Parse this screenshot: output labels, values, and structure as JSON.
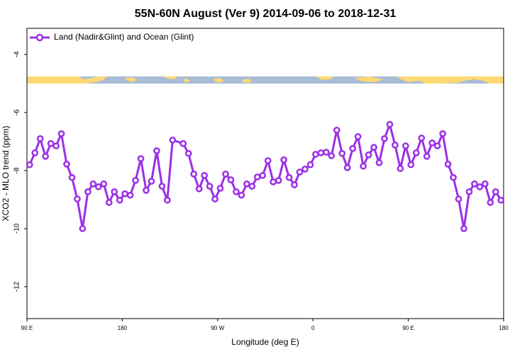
{
  "chart_data": {
    "type": "line",
    "title": "55N-60N August (Ver 9)   2014-09-06 to 2018-12-31",
    "xlabel": "Longitude (deg E)",
    "ylabel": "XCO2 - MLO trend (ppm)",
    "xlim": [
      90,
      540
    ],
    "ylim": [
      -13.1,
      -3.1
    ],
    "xticks": [
      {
        "value": 90,
        "label": "90 E"
      },
      {
        "value": 180,
        "label": "180"
      },
      {
        "value": 270,
        "label": "90 W"
      },
      {
        "value": 360,
        "label": "0"
      },
      {
        "value": 450,
        "label": "90 E"
      },
      {
        "value": 540,
        "label": "180"
      }
    ],
    "yticks": [
      -4,
      -6,
      -8,
      -10,
      -12
    ],
    "legend": "upper left",
    "series": [
      {
        "name": "Land (Nadir&Glint) and Ocean (Glint)",
        "color": "#9b2fe6",
        "x": [
          92.5,
          97.5,
          102.5,
          107.5,
          112.5,
          117.5,
          122.5,
          127.5,
          132.5,
          137.5,
          142.5,
          147.5,
          152.5,
          157.5,
          162.5,
          167.5,
          172.5,
          177.5,
          182.5,
          187.5,
          192.5,
          197.5,
          202.5,
          207.5,
          212.5,
          217.5,
          222.5,
          227.5,
          237.5,
          242.5,
          247.5,
          252.5,
          257.5,
          262.5,
          267.5,
          272.5,
          277.5,
          282.5,
          287.5,
          292.5,
          297.5,
          302.5,
          307.5,
          312.5,
          317.5,
          322.5,
          327.5,
          332.5,
          337.5,
          342.5,
          347.5,
          352.5,
          357.5,
          362.5,
          367.5,
          372.5,
          377.5,
          382.5,
          387.5,
          392.5,
          397.5,
          402.5,
          407.5,
          412.5,
          417.5,
          422.5,
          427.5,
          432.5,
          437.5,
          442.5,
          447.5,
          452.5,
          457.5,
          462.5,
          467.5,
          472.5,
          477.5,
          482.5,
          487.5,
          492.5,
          497.5,
          502.5,
          507.5,
          512.5,
          517.5,
          522.5,
          527.5,
          532.5,
          537.5
        ],
        "values": [
          -7.8,
          -7.39,
          -6.9,
          -7.51,
          -7.07,
          -7.15,
          -6.73,
          -7.78,
          -8.24,
          -8.98,
          -10,
          -8.73,
          -8.46,
          -8.56,
          -8.46,
          -9.1,
          -8.73,
          -9.02,
          -8.8,
          -8.85,
          -8.34,
          -7.59,
          -8.68,
          -8.37,
          -7.32,
          -8.54,
          -9.02,
          -6.95,
          -7.07,
          -7.41,
          -8.12,
          -8.63,
          -8.17,
          -8.54,
          -8.98,
          -8.61,
          -8.12,
          -8.32,
          -8.73,
          -8.85,
          -8.46,
          -8.54,
          -8.22,
          -8.17,
          -7.66,
          -8.39,
          -8.34,
          -7.63,
          -8.24,
          -8.49,
          -8.05,
          -7.95,
          -7.8,
          -7.44,
          -7.39,
          -7.37,
          -7.49,
          -6.61,
          -7.41,
          -7.9,
          -7.24,
          -6.83,
          -7.85,
          -7.46,
          -7.2,
          -7.73,
          -6.9,
          -6.41,
          -7.12,
          -7.93,
          -7.15,
          -7.8,
          -7.39,
          -6.88,
          -7.51,
          -7.05,
          -7.15,
          -6.73,
          -7.78,
          -8.24,
          -8.98,
          -10,
          -8.73,
          -8.46,
          -8.56,
          -8.46,
          -9.1,
          -8.73,
          -9.02
        ]
      }
    ]
  }
}
